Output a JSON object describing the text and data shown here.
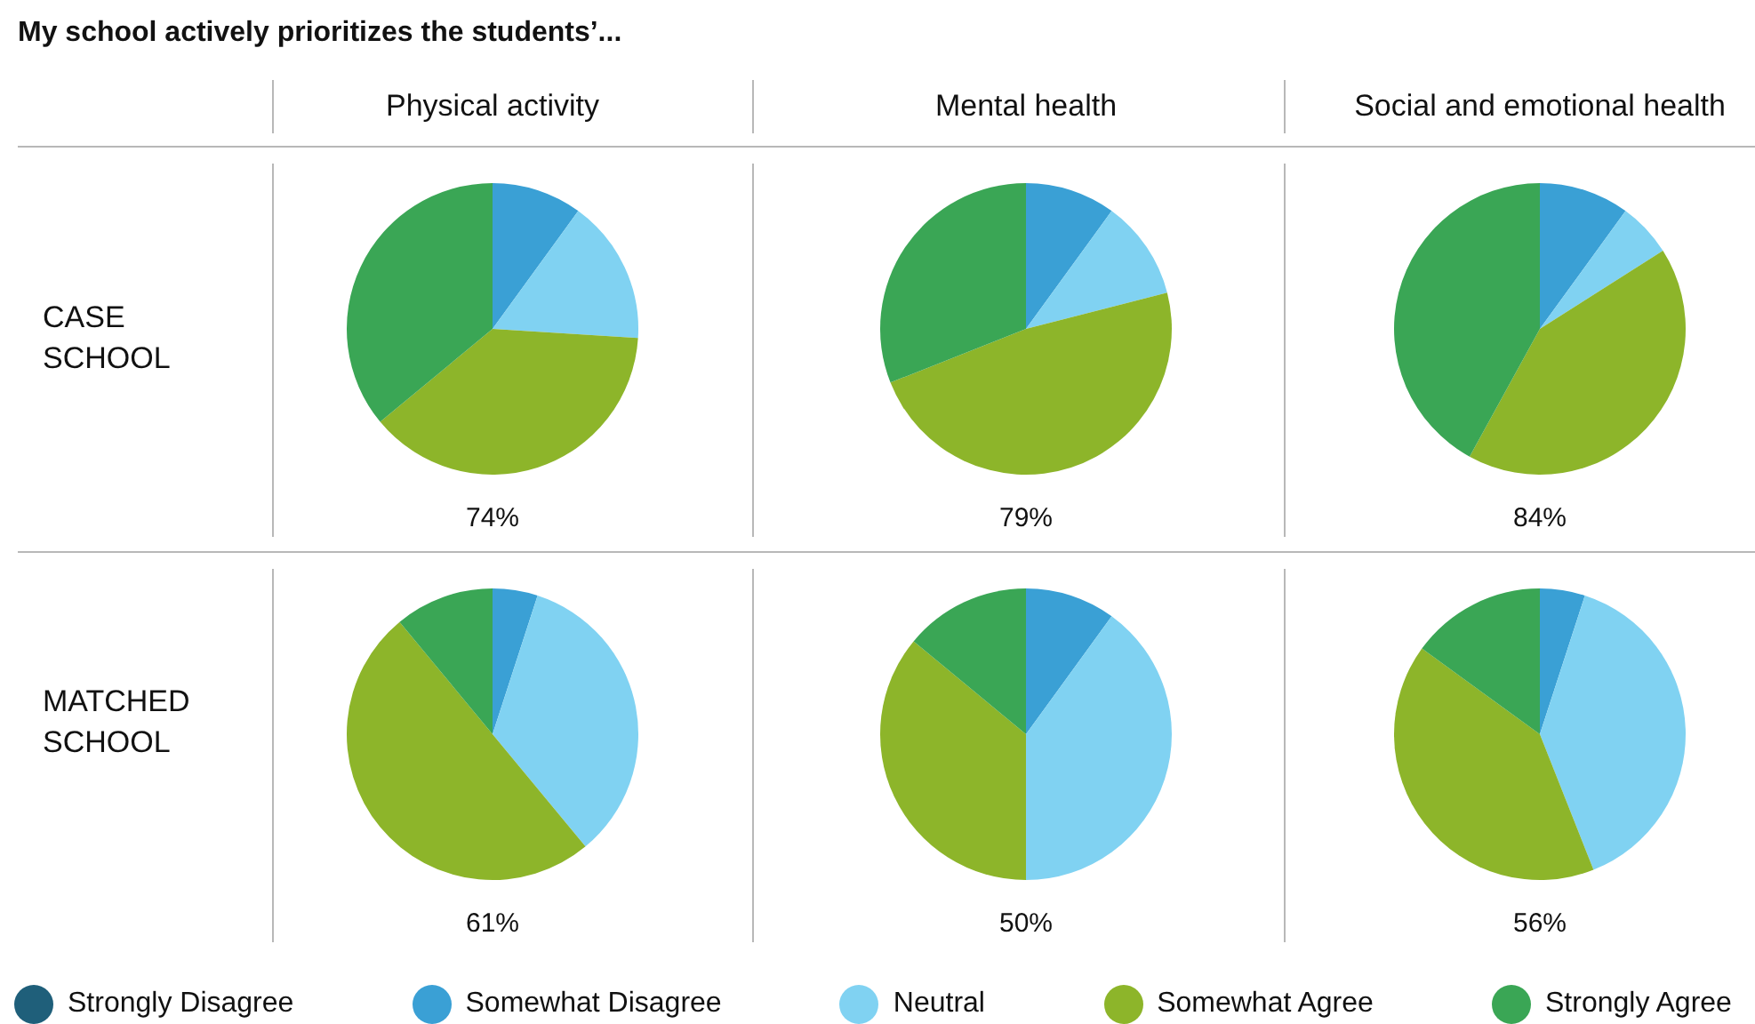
{
  "chart_data": [
    {
      "type": "pie",
      "title": "Physical activity",
      "ylabel": "CASE SCHOOL",
      "xlabel": "74%",
      "annotations": [
        "My school actively prioritizes the students’..."
      ],
      "legend": "bottom",
      "categories": [
        "Strongly Disagree",
        "Somewhat Disagree",
        "Neutral",
        "Somewhat Agree",
        "Strongly Agree"
      ],
      "values": [
        0,
        10,
        16,
        38,
        36
      ],
      "colors": [
        "#1f5f7a",
        "#3aa0d5",
        "#80d2f2",
        "#8db52a",
        "#3aa655"
      ]
    },
    {
      "type": "pie",
      "title": "Mental health",
      "xlabel": "79%",
      "categories": [
        null,
        null,
        null,
        null,
        null
      ],
      "values": [
        0,
        10,
        11,
        48,
        31
      ],
      "colors": [
        "#1f5f7a",
        "#3aa0d5",
        "#80d2f2",
        "#8db52a",
        "#3aa655"
      ]
    },
    {
      "type": "pie",
      "title": "Social and emotional health",
      "xlabel": "84%",
      "categories": [
        null,
        null,
        null,
        null,
        null
      ],
      "values": [
        0,
        10,
        6,
        42,
        42
      ],
      "colors": [
        "#1f5f7a",
        "#3aa0d5",
        "#80d2f2",
        "#8db52a",
        "#3aa655"
      ]
    },
    {
      "type": "pie",
      "ylabel": "MATCHED SCHOOL",
      "xlabel": "61%",
      "categories": [
        null,
        null,
        null,
        null,
        null
      ],
      "values": [
        0,
        5,
        34,
        50,
        11
      ],
      "colors": [
        "#1f5f7a",
        "#3aa0d5",
        "#80d2f2",
        "#8db52a",
        "#3aa655"
      ]
    },
    {
      "type": "pie",
      "xlabel": "50%",
      "categories": [
        null,
        null,
        null,
        null,
        null
      ],
      "values": [
        0,
        10,
        40,
        36,
        14
      ],
      "colors": [
        "#1f5f7a",
        "#3aa0d5",
        "#80d2f2",
        "#8db52a",
        "#3aa655"
      ]
    },
    {
      "type": "pie",
      "xlabel": "56%",
      "categories": [
        null,
        null,
        null,
        null,
        null
      ],
      "values": [
        0,
        5,
        39,
        41,
        15
      ],
      "colors": [
        "#1f5f7a",
        "#3aa0d5",
        "#80d2f2",
        "#8db52a",
        "#3aa655"
      ]
    }
  ]
}
